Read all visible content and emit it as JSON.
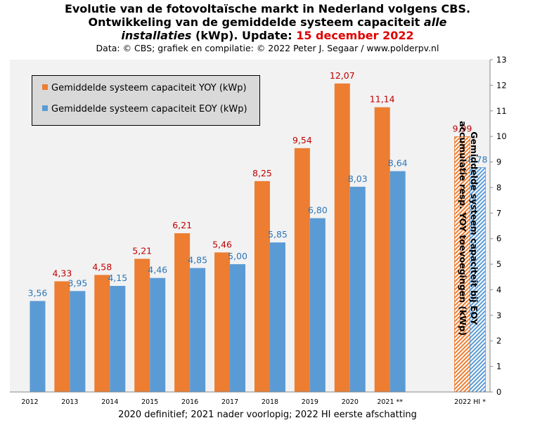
{
  "header": {
    "line1": "Evolutie  van de fotovoltaïsche  markt in Nederland volgens CBS.",
    "line2_prefix": "Ontwikkeling  van de gemiddelde  systeem capaciteit ",
    "line2_italic": "alle",
    "line3_italic": "installaties",
    "line3_mid": " (kWp). Update: ",
    "line3_date": "15 december 2022",
    "credit": "Data: © CBS;  grafiek en compilatie:  © 2022 Peter J. Segaar / www.polderpv.nl"
  },
  "footer": "2020 definitief;  2021 nader voorlopig;  2022 HI eerste afschatting",
  "colors": {
    "yoy": "#ed7d31",
    "eoy": "#5b9bd5",
    "yoy_label": "#c00000",
    "eoy_label": "#2e75b6",
    "plot_bg": "#f2f2f2"
  },
  "chart_data": {
    "type": "bar",
    "categories": [
      "2012",
      "2013",
      "2014",
      "2015",
      "2016",
      "2017",
      "2018",
      "2019",
      "2020",
      "2021 **",
      "",
      "2022 HI *"
    ],
    "series": [
      {
        "name": "Gemiddelde systeem capaciteit YOY (kWp)",
        "values": [
          null,
          4.33,
          4.58,
          5.21,
          6.21,
          5.46,
          8.25,
          9.54,
          12.07,
          11.14,
          null,
          9.99
        ],
        "labels": [
          "",
          "4,33",
          "4,58",
          "5,21",
          "6,21",
          "5,46",
          "8,25",
          "9,54",
          "12,07",
          "11,14",
          "",
          "9,99"
        ]
      },
      {
        "name": "Gemiddelde systeem capaciteit EOY (kWp)",
        "values": [
          3.56,
          3.95,
          4.15,
          4.46,
          4.85,
          5.0,
          5.85,
          6.8,
          8.03,
          8.64,
          null,
          8.78
        ],
        "labels": [
          "3,56",
          "3,95",
          "4,15",
          "4,46",
          "4,85",
          "5,00",
          "5,85",
          "6,80",
          "8,03",
          "8,64",
          "",
          "8,78"
        ]
      }
    ],
    "estimate_category": "2022 HI *",
    "ylabel": "Gemiddelde systeem capaciteit bij EOY accumulatie resp. YOY toevoegingen (kWp)",
    "ylim": [
      0,
      13
    ],
    "yticks": [
      "0",
      "1",
      "2",
      "3",
      "4",
      "5",
      "6",
      "7",
      "8",
      "9",
      "10",
      "11",
      "12",
      "13"
    ],
    "y_axis_side": "right",
    "grid": false,
    "legend_position": "top-left"
  }
}
